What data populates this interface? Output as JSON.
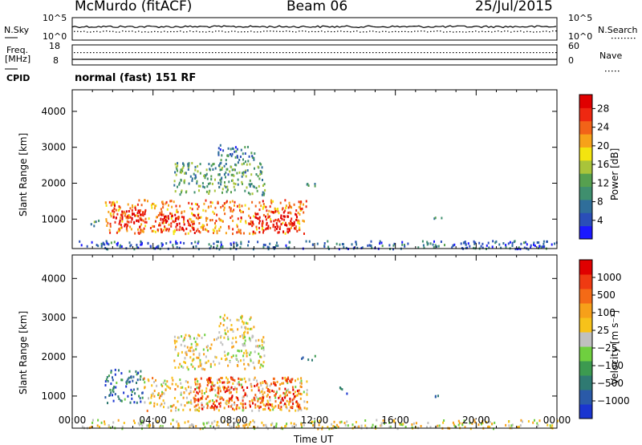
{
  "header": {
    "station": "McMurdo (fitACF)",
    "beam": "Beam 06",
    "date": "25/Jul/2015"
  },
  "strip_labels": {
    "nsky": "N.Sky",
    "nsky_lo": "10^0",
    "nsky_hi": "10^5",
    "nsearch": "N.Search",
    "nsearch_lo": "10^0",
    "nsearch_hi": "10^5",
    "freq_line1": "Freq.",
    "freq_line2": "[MHz]",
    "freq_hi": "18",
    "freq_lo": "8",
    "nave": "Nave",
    "nave_hi": "60",
    "nave_lo": "0",
    "cpid": "CPID",
    "mode": "normal (fast) 151 RF"
  },
  "chart_data": [
    {
      "type": "heatmap",
      "title": "",
      "ylabel": "Slant Range [km]",
      "xlabel": "",
      "ylim": [
        180,
        4600
      ],
      "xlim_hours": [
        0,
        24
      ],
      "y_ticks": [
        "1000",
        "2000",
        "3000",
        "4000"
      ],
      "colorbar": {
        "label": "Power [dB]",
        "ticks": [
          "4",
          "8",
          "12",
          "16",
          "20",
          "24",
          "28"
        ],
        "range": [
          0,
          30
        ],
        "colors": [
          "#1b18ff",
          "#2a4eb8",
          "#2f6e9a",
          "#3f8f6e",
          "#56a04f",
          "#a9c43a",
          "#f3e40f",
          "#f7a219",
          "#f26318",
          "#ee2811",
          "#e00000"
        ]
      },
      "blobs": [
        {
          "t0": 1.6,
          "t1": 11.6,
          "r0": 620,
          "r1": 1560,
          "level": 0.75
        },
        {
          "t0": 2.0,
          "t1": 3.6,
          "r0": 800,
          "r1": 1300,
          "level": 0.95
        },
        {
          "t0": 4.3,
          "t1": 6.2,
          "r0": 700,
          "r1": 1200,
          "level": 0.95
        },
        {
          "t0": 8.9,
          "t1": 11.1,
          "r0": 650,
          "r1": 1250,
          "level": 1.0
        },
        {
          "t0": 5.0,
          "t1": 9.5,
          "r0": 1700,
          "r1": 2600,
          "level": 0.35
        },
        {
          "t0": 7.2,
          "t1": 9.0,
          "r0": 2600,
          "r1": 3100,
          "level": 0.25
        },
        {
          "t0": 11.3,
          "t1": 12.0,
          "r0": 1900,
          "r1": 2050,
          "level": 0.3
        },
        {
          "t0": 0.9,
          "t1": 1.4,
          "r0": 800,
          "r1": 1000,
          "level": 0.3
        },
        {
          "t0": 17.8,
          "t1": 18.3,
          "r0": 1000,
          "r1": 1100,
          "level": 0.3
        },
        {
          "t0": 0.3,
          "t1": 24.0,
          "r0": 190,
          "r1": 420,
          "level": 0.2
        }
      ]
    },
    {
      "type": "heatmap",
      "title": "",
      "ylabel": "Slant Range [km]",
      "xlabel": "Time UT",
      "ylim": [
        180,
        4600
      ],
      "xlim_hours": [
        0,
        24
      ],
      "y_ticks": [
        "1000",
        "2000",
        "3000",
        "4000"
      ],
      "x_ticks": [
        "00:00",
        "04:00",
        "08:00",
        "12:00",
        "16:00",
        "20:00",
        "00:00"
      ],
      "colorbar": {
        "label": "Velocity [m s⁻¹]",
        "ticks": [
          "1000",
          "500",
          "100",
          "25",
          "−25",
          "−100",
          "−500",
          "−1000"
        ],
        "range": [
          -1200,
          1200
        ],
        "colors": [
          "#1a35d0",
          "#2a5aa8",
          "#2f7a72",
          "#3c9a50",
          "#6fcf3f",
          "#c0c0c0",
          "#f7c21a",
          "#f7a019",
          "#f46a16",
          "#ef3a12",
          "#e00000"
        ]
      },
      "blobs": [
        {
          "t0": 1.6,
          "t1": 3.5,
          "r0": 850,
          "r1": 1700,
          "level": 0.2
        },
        {
          "t0": 3.5,
          "t1": 11.6,
          "r0": 650,
          "r1": 1500,
          "level": 0.6
        },
        {
          "t0": 6.0,
          "t1": 11.3,
          "r0": 700,
          "r1": 1500,
          "level": 0.85
        },
        {
          "t0": 5.0,
          "t1": 9.5,
          "r0": 1700,
          "r1": 2600,
          "level": 0.55
        },
        {
          "t0": 7.2,
          "t1": 9.0,
          "r0": 2600,
          "r1": 3100,
          "level": 0.55
        },
        {
          "t0": 11.3,
          "t1": 12.0,
          "r0": 1900,
          "r1": 2050,
          "level": 0.3
        },
        {
          "t0": 13.2,
          "t1": 13.6,
          "r0": 1050,
          "r1": 1250,
          "level": 0.2
        },
        {
          "t0": 17.8,
          "t1": 18.3,
          "r0": 1000,
          "r1": 1100,
          "level": 0.25
        },
        {
          "t0": 0.3,
          "t1": 24.0,
          "r0": 190,
          "r1": 420,
          "level": 0.55
        }
      ]
    }
  ]
}
